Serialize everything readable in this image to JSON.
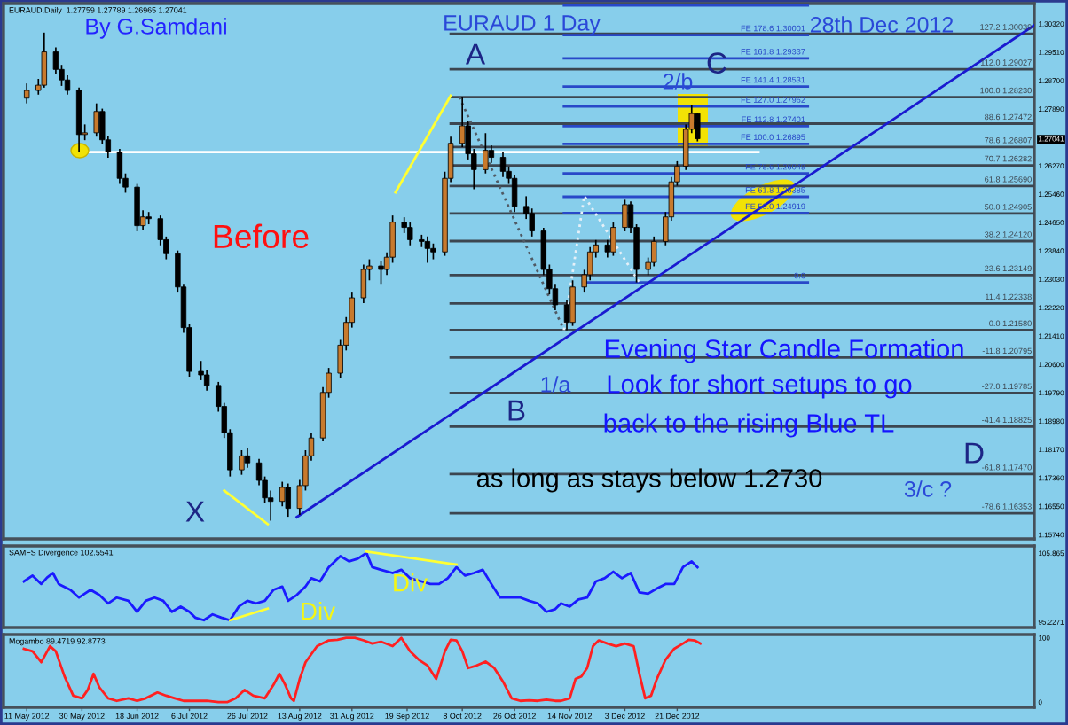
{
  "chart_data": [
    {
      "type": "candlestick",
      "title": "EURAUD 1 Day",
      "subtitle": "EURAUD,Daily  1.27759 1.27789 1.26965 1.27041",
      "x": [
        "2012-05-11",
        "2012-05-15",
        "2012-05-17",
        "2012-05-21",
        "2012-05-23",
        "2012-05-25",
        "2012-05-29",
        "2012-05-31",
        "2012-06-04",
        "2012-06-06",
        "2012-06-08",
        "2012-06-12",
        "2012-06-14",
        "2012-06-18",
        "2012-06-20",
        "2012-06-22",
        "2012-06-26",
        "2012-06-28",
        "2012-07-02",
        "2012-07-04",
        "2012-07-06",
        "2012-07-10",
        "2012-07-12",
        "2012-07-16",
        "2012-07-18",
        "2012-07-20",
        "2012-07-24",
        "2012-07-26",
        "2012-07-30",
        "2012-08-01",
        "2012-08-03",
        "2012-08-07",
        "2012-08-09",
        "2012-08-13",
        "2012-08-15",
        "2012-08-17",
        "2012-08-21",
        "2012-08-23",
        "2012-08-27",
        "2012-08-29",
        "2012-08-31",
        "2012-09-04",
        "2012-09-06",
        "2012-09-10",
        "2012-09-12",
        "2012-09-14",
        "2012-09-18",
        "2012-09-20",
        "2012-09-24",
        "2012-09-26",
        "2012-09-28",
        "2012-10-02",
        "2012-10-04",
        "2012-10-08",
        "2012-10-10",
        "2012-10-12",
        "2012-10-16",
        "2012-10-18",
        "2012-10-22",
        "2012-10-24",
        "2012-10-26",
        "2012-10-30",
        "2012-11-01",
        "2012-11-05",
        "2012-11-07",
        "2012-11-09",
        "2012-11-13",
        "2012-11-15",
        "2012-11-19",
        "2012-11-21",
        "2012-11-23",
        "2012-11-27",
        "2012-11-29",
        "2012-12-03",
        "2012-12-05",
        "2012-12-07",
        "2012-12-11",
        "2012-12-13",
        "2012-12-17",
        "2012-12-19",
        "2012-12-21",
        "2012-12-24",
        "2012-12-26",
        "2012-12-28"
      ],
      "ohlc": [
        [
          1.282,
          1.2862,
          1.2805,
          1.2842
        ],
        [
          1.2842,
          1.2875,
          1.283,
          1.2857
        ],
        [
          1.2857,
          1.3007,
          1.285,
          1.2952
        ],
        [
          1.2952,
          1.2965,
          1.289,
          1.2902
        ],
        [
          1.2902,
          1.2915,
          1.2855,
          1.2872
        ],
        [
          1.2872,
          1.2885,
          1.283,
          1.2842
        ],
        [
          1.2842,
          1.285,
          1.2666,
          1.2716
        ],
        [
          1.2716,
          1.2745,
          1.27,
          1.2721
        ],
        [
          1.2721,
          1.2805,
          1.271,
          1.2782
        ],
        [
          1.2782,
          1.279,
          1.269,
          1.2701
        ],
        [
          1.2701,
          1.2712,
          1.265,
          1.2666
        ],
        [
          1.2666,
          1.2675,
          1.2575,
          1.2591
        ],
        [
          1.2591,
          1.2605,
          1.255,
          1.2566
        ],
        [
          1.2566,
          1.2575,
          1.244,
          1.2456
        ],
        [
          1.2456,
          1.25,
          1.2445,
          1.2481
        ],
        [
          1.2481,
          1.2495,
          1.246,
          1.2476
        ],
        [
          1.2476,
          1.2485,
          1.24,
          1.2416
        ],
        [
          1.2416,
          1.2425,
          1.236,
          1.2376
        ],
        [
          1.2376,
          1.2385,
          1.2265,
          1.2281
        ],
        [
          1.2281,
          1.229,
          1.215,
          1.2165
        ],
        [
          1.2165,
          1.2175,
          1.2025,
          1.204
        ],
        [
          1.204,
          1.207,
          1.2015,
          1.203
        ],
        [
          1.203,
          1.2045,
          1.1985,
          1.2
        ],
        [
          1.2,
          1.201,
          1.1925,
          1.194
        ],
        [
          1.194,
          1.195,
          1.185,
          1.1865
        ],
        [
          1.1865,
          1.1875,
          1.174,
          1.1759
        ],
        [
          1.1759,
          1.1815,
          1.1745,
          1.1799
        ],
        [
          1.1799,
          1.182,
          1.1765,
          1.1779
        ],
        [
          1.1779,
          1.179,
          1.1715,
          1.1729
        ],
        [
          1.1729,
          1.174,
          1.1665,
          1.1679
        ],
        [
          1.1679,
          1.17,
          1.1614,
          1.1669
        ],
        [
          1.1669,
          1.1725,
          1.1655,
          1.1709
        ],
        [
          1.1709,
          1.172,
          1.1625,
          1.1649
        ],
        [
          1.1649,
          1.173,
          1.163,
          1.1714
        ],
        [
          1.1714,
          1.1815,
          1.17,
          1.1799
        ],
        [
          1.1799,
          1.1865,
          1.1785,
          1.185
        ],
        [
          1.185,
          1.1995,
          1.184,
          1.198
        ],
        [
          1.198,
          1.205,
          1.1965,
          1.2035
        ],
        [
          1.2035,
          1.213,
          1.202,
          1.2115
        ],
        [
          1.2115,
          1.2195,
          1.21,
          1.218
        ],
        [
          1.218,
          1.2265,
          1.2165,
          1.225
        ],
        [
          1.225,
          1.2345,
          1.2235,
          1.2331
        ],
        [
          1.2331,
          1.236,
          1.23,
          1.2341
        ],
        [
          1.2341,
          1.2355,
          1.229,
          1.2331
        ],
        [
          1.2331,
          1.238,
          1.2315,
          1.2366
        ],
        [
          1.2366,
          1.2485,
          1.235,
          1.2466
        ],
        [
          1.2466,
          1.248,
          1.2435,
          1.2451
        ],
        [
          1.2451,
          1.2465,
          1.24,
          1.2416
        ],
        [
          1.2416,
          1.243,
          1.2395,
          1.2411
        ],
        [
          1.2411,
          1.2425,
          1.235,
          1.2391
        ],
        [
          1.2391,
          1.2405,
          1.236,
          1.2381
        ],
        [
          1.2381,
          1.261,
          1.237,
          1.2591
        ],
        [
          1.2591,
          1.271,
          1.258,
          1.2691
        ],
        [
          1.2691,
          1.2823,
          1.268,
          1.2741
        ],
        [
          1.2741,
          1.2755,
          1.2645,
          1.2661
        ],
        [
          1.2661,
          1.2675,
          1.256,
          1.2616
        ],
        [
          1.2616,
          1.272,
          1.2605,
          1.2671
        ],
        [
          1.2671,
          1.2685,
          1.2635,
          1.2651
        ],
        [
          1.2651,
          1.2665,
          1.2595,
          1.2611
        ],
        [
          1.2611,
          1.2625,
          1.2575,
          1.2591
        ],
        [
          1.2591,
          1.26,
          1.2495,
          1.2511
        ],
        [
          1.2511,
          1.254,
          1.2475,
          1.2491
        ],
        [
          1.2491,
          1.2505,
          1.2425,
          1.2441
        ],
        [
          1.2441,
          1.245,
          1.2315,
          1.2331
        ],
        [
          1.2331,
          1.2345,
          1.226,
          1.2276
        ],
        [
          1.2276,
          1.229,
          1.2215,
          1.223
        ],
        [
          1.223,
          1.2245,
          1.2158,
          1.218
        ],
        [
          1.218,
          1.23,
          1.217,
          1.2281
        ],
        [
          1.2281,
          1.233,
          1.2265,
          1.2316
        ],
        [
          1.2316,
          1.2395,
          1.23,
          1.2381
        ],
        [
          1.2381,
          1.2415,
          1.2365,
          1.2401
        ],
        [
          1.2401,
          1.2415,
          1.2365,
          1.2381
        ],
        [
          1.2381,
          1.2465,
          1.237,
          1.2451
        ],
        [
          1.2451,
          1.253,
          1.244,
          1.2516
        ],
        [
          1.2516,
          1.2525,
          1.2435,
          1.2451
        ],
        [
          1.2451,
          1.246,
          1.2294,
          1.2331
        ],
        [
          1.2331,
          1.2365,
          1.2315,
          1.2351
        ],
        [
          1.2351,
          1.2425,
          1.234,
          1.2411
        ],
        [
          1.2411,
          1.2495,
          1.24,
          1.2481
        ],
        [
          1.2481,
          1.2595,
          1.247,
          1.2581
        ],
        [
          1.2581,
          1.264,
          1.257,
          1.2626
        ],
        [
          1.2626,
          1.2745,
          1.2615,
          1.2731
        ],
        [
          1.2731,
          1.28,
          1.272,
          1.2776
        ],
        [
          1.27759,
          1.27789,
          1.26965,
          1.27041
        ]
      ],
      "colors": [
        "#c87a2d",
        "#c87a2d",
        "#c87a2d",
        "#000000",
        "#000000",
        "#000000",
        "#000000",
        "#c87a2d",
        "#c87a2d",
        "#000000",
        "#000000",
        "#000000",
        "#000000",
        "#000000",
        "#c87a2d",
        "#000000",
        "#000000",
        "#000000",
        "#000000",
        "#000000",
        "#000000",
        "#000000",
        "#000000",
        "#000000",
        "#000000",
        "#000000",
        "#c87a2d",
        "#000000",
        "#000000",
        "#000000",
        "#000000",
        "#c87a2d",
        "#000000",
        "#c87a2d",
        "#c87a2d",
        "#c87a2d",
        "#c87a2d",
        "#c87a2d",
        "#c87a2d",
        "#c87a2d",
        "#c87a2d",
        "#c87a2d",
        "#c87a2d",
        "#000000",
        "#c87a2d",
        "#c87a2d",
        "#000000",
        "#000000",
        "#000000",
        "#000000",
        "#000000",
        "#c87a2d",
        "#c87a2d",
        "#c87a2d",
        "#000000",
        "#000000",
        "#c87a2d",
        "#000000",
        "#000000",
        "#000000",
        "#000000",
        "#000000",
        "#000000",
        "#000000",
        "#000000",
        "#000000",
        "#000000",
        "#c87a2d",
        "#c87a2d",
        "#c87a2d",
        "#c87a2d",
        "#000000",
        "#c87a2d",
        "#c87a2d",
        "#000000",
        "#000000",
        "#c87a2d",
        "#c87a2d",
        "#c87a2d",
        "#c87a2d",
        "#c87a2d",
        "#c87a2d",
        "#c87a2d",
        "#000000"
      ],
      "series": [
        {
          "type": "line",
          "name": "127.2 1.30039",
          "x": [
            "2012-10-04",
            "2013-04-23"
          ],
          "values": [
            1.30039,
            1.30039
          ],
          "color": "#3c4650"
        },
        {
          "type": "line",
          "name": "112.0 1.29027",
          "x": [
            "2012-10-04",
            "2013-04-23"
          ],
          "values": [
            1.29027,
            1.29027
          ],
          "color": "#3c4650"
        },
        {
          "type": "line",
          "name": "100.0 1.28230",
          "x": [
            "2012-10-04",
            "2013-04-23"
          ],
          "values": [
            1.2823,
            1.2823
          ],
          "color": "#3c4650"
        },
        {
          "type": "line",
          "name": "88.6 1.27472",
          "x": [
            "2012-10-04",
            "2013-04-23"
          ],
          "values": [
            1.27472,
            1.27472
          ],
          "color": "#3c4650"
        },
        {
          "type": "line",
          "name": "78.6 1.26807",
          "x": [
            "2012-10-04",
            "2013-04-23"
          ],
          "values": [
            1.26807,
            1.26807
          ],
          "color": "#3c4650"
        },
        {
          "type": "line",
          "name": "70.7 1.26282",
          "x": [
            "2012-10-04",
            "2013-04-23"
          ],
          "values": [
            1.26282,
            1.26282
          ],
          "color": "#3c4650"
        },
        {
          "type": "line",
          "name": "61.8 1.25690",
          "x": [
            "2012-10-04",
            "2013-04-23"
          ],
          "values": [
            1.2569,
            1.2569
          ],
          "color": "#3c4650"
        },
        {
          "type": "line",
          "name": "50.0 1.24905",
          "x": [
            "2012-10-04",
            "2013-04-23"
          ],
          "values": [
            1.24905,
            1.24905
          ],
          "color": "#3c4650"
        },
        {
          "type": "line",
          "name": "38.2 1.24120",
          "x": [
            "2012-10-04",
            "2013-04-23"
          ],
          "values": [
            1.2412,
            1.2412
          ],
          "color": "#3c4650"
        },
        {
          "type": "line",
          "name": "23.6 1.23149",
          "x": [
            "2012-10-04",
            "2013-04-23"
          ],
          "values": [
            1.23149,
            1.23149
          ],
          "color": "#3c4650"
        },
        {
          "type": "line",
          "name": "11.4 1.22338",
          "x": [
            "2012-10-04",
            "2013-04-23"
          ],
          "values": [
            1.22338,
            1.22338
          ],
          "color": "#3c4650"
        },
        {
          "type": "line",
          "name": "0.0 1.21580",
          "x": [
            "2012-10-04",
            "2013-04-23"
          ],
          "values": [
            1.2158,
            1.2158
          ],
          "color": "#3c4650"
        },
        {
          "type": "line",
          "name": "-11.8 1.20795",
          "x": [
            "2012-10-04",
            "2013-04-23"
          ],
          "values": [
            1.20795,
            1.20795
          ],
          "color": "#3c4650"
        },
        {
          "type": "line",
          "name": "-27.0 1.19785",
          "x": [
            "2012-10-04",
            "2013-04-23"
          ],
          "values": [
            1.19785,
            1.19785
          ],
          "color": "#3c4650"
        },
        {
          "type": "line",
          "name": "-41.4 1.18825",
          "x": [
            "2012-10-04",
            "2013-04-23"
          ],
          "values": [
            1.18825,
            1.18825
          ],
          "color": "#3c4650"
        },
        {
          "type": "line",
          "name": "-61.8 1.17470",
          "x": [
            "2012-10-04",
            "2013-04-23"
          ],
          "values": [
            1.1747,
            1.1747
          ],
          "color": "#3c4650"
        },
        {
          "type": "line",
          "name": "-78.6 1.16353",
          "x": [
            "2012-10-04",
            "2013-04-23"
          ],
          "values": [
            1.16353,
            1.16353
          ],
          "color": "#3c4650"
        },
        {
          "type": "line",
          "name": "FE 178.6 1.30001",
          "x": [
            "2012-11-12",
            "2013-02-04"
          ],
          "values": [
            1.30001,
            1.30001
          ],
          "color": "#2848c8"
        },
        {
          "type": "line",
          "name": "FE 161.8 1.29337",
          "x": [
            "2012-11-12",
            "2013-02-04"
          ],
          "values": [
            1.29337,
            1.29337
          ],
          "color": "#2848c8"
        },
        {
          "type": "line",
          "name": "FE 141.4 1.28531",
          "x": [
            "2012-11-12",
            "2013-02-04"
          ],
          "values": [
            1.28531,
            1.28531
          ],
          "color": "#2848c8"
        },
        {
          "type": "line",
          "name": "FE 127.0 1.27962",
          "x": [
            "2012-11-12",
            "2013-02-04"
          ],
          "values": [
            1.27962,
            1.27962
          ],
          "color": "#2848c8"
        },
        {
          "type": "line",
          "name": "FE 112.8 1.27401",
          "x": [
            "2012-11-12",
            "2013-02-04"
          ],
          "values": [
            1.27401,
            1.27401
          ],
          "color": "#2848c8"
        },
        {
          "type": "line",
          "name": "FE 100.0 1.26895",
          "x": [
            "2012-11-12",
            "2013-02-04"
          ],
          "values": [
            1.26895,
            1.26895
          ],
          "color": "#2848c8"
        },
        {
          "type": "line",
          "name": "FE 78.6 1.26049",
          "x": [
            "2012-11-12",
            "2013-02-04"
          ],
          "values": [
            1.26049,
            1.26049
          ],
          "color": "#2848c8"
        },
        {
          "type": "line",
          "name": "FE 61.8 1.25385",
          "x": [
            "2012-11-12",
            "2013-02-04"
          ],
          "values": [
            1.25385,
            1.25385
          ],
          "color": "#2848c8"
        },
        {
          "type": "line",
          "name": "FE 50.0 1.24919",
          "x": [
            "2012-11-12",
            "2013-02-04"
          ],
          "values": [
            1.24919,
            1.24919
          ],
          "color": "#2848c8"
        },
        {
          "type": "line",
          "name": "0.0",
          "x": [
            "2012-11-19",
            "2013-02-04"
          ],
          "values": [
            1.22943,
            1.22943
          ],
          "color": "#2848c8"
        },
        {
          "type": "line",
          "x": [
            "2012-11-12",
            "2013-02-04"
          ],
          "values": [
            1.30847,
            1.30847
          ],
          "color": "#2848c8"
        },
        {
          "type": "line",
          "x": [
            "2012-08-12",
            "2013-04-23"
          ],
          "values": [
            1.1624,
            1.3028
          ],
          "color": "#1a1ad0"
        },
        {
          "type": "line",
          "x": [
            "2012-05-30",
            "2013-01-18"
          ],
          "values": [
            1.2666,
            1.2666
          ],
          "color": "#ffffff"
        },
        {
          "type": "line",
          "x": [
            "2012-07-18",
            "2012-08-02"
          ],
          "values": [
            1.17,
            1.1604
          ],
          "color": "#ffff33"
        },
        {
          "type": "line",
          "x": [
            "2012-09-15",
            "2012-10-04"
          ],
          "values": [
            1.2551,
            1.2827
          ],
          "color": "#ffff33"
        },
        {
          "type": "line",
          "line_style": "dotted",
          "x": [
            "2012-10-07",
            "2012-11-12"
          ],
          "values": [
            1.2823,
            1.2158
          ],
          "color": "#505a64"
        },
        {
          "type": "line",
          "line_style": "dotted",
          "x": [
            "2012-11-12",
            "2012-11-19",
            "2012-12-08"
          ],
          "values": [
            1.2158,
            1.2541,
            1.2294
          ],
          "color": "#e6f0f8"
        }
      ],
      "xlim": [
        "2012-05-03",
        "2013-04-23"
      ],
      "ylim": [
        1.1562,
        1.309
      ],
      "yticks": [
        {
          "value": 1.3032,
          "label": "1.30320"
        },
        {
          "value": 1.2951,
          "label": "1.29510"
        },
        {
          "value": 1.287,
          "label": "1.28700"
        },
        {
          "value": 1.2789,
          "label": "1.27890"
        },
        {
          "value": 1.27041,
          "label": "1.27041"
        },
        {
          "value": 1.2627,
          "label": "1.26270"
        },
        {
          "value": 1.2546,
          "label": "1.25460"
        },
        {
          "value": 1.2465,
          "label": "1.24650"
        },
        {
          "value": 1.2384,
          "label": "1.23840"
        },
        {
          "value": 1.2303,
          "label": "1.23030"
        },
        {
          "value": 1.2222,
          "label": "1.22220"
        },
        {
          "value": 1.2141,
          "label": "1.21410"
        },
        {
          "value": 1.206,
          "label": "1.20600"
        },
        {
          "value": 1.1979,
          "label": "1.19790"
        },
        {
          "value": 1.1898,
          "label": "1.18980"
        },
        {
          "value": 1.1817,
          "label": "1.18170"
        },
        {
          "value": 1.1736,
          "label": "1.17360"
        },
        {
          "value": 1.1655,
          "label": "1.16550"
        },
        {
          "value": 1.1574,
          "label": "1.15740"
        }
      ],
      "tick_labels": "y",
      "annotations": [
        "By G.Samdani",
        "28th Dec 2012",
        "Before",
        "Evening Star Candle Formation",
        "Look for short setups to go",
        "back to the rising Blue TL",
        "as long as stays below 1.2730",
        "A",
        "B",
        "C",
        "D",
        "X",
        "2/b",
        "1/a",
        "3/c ?"
      ]
    },
    {
      "type": "line",
      "title": "SAMFS Divergence 102.5541",
      "series": [
        {
          "x": [
            "2012-05-10",
            "2012-05-13",
            "2012-05-16",
            "2012-05-18",
            "2012-05-20",
            "2012-05-22",
            "2012-05-26",
            "2012-05-29",
            "2012-06-02",
            "2012-06-05",
            "2012-06-08",
            "2012-06-11",
            "2012-06-15",
            "2012-06-18",
            "2012-06-21",
            "2012-06-24",
            "2012-06-27",
            "2012-06-30",
            "2012-07-03",
            "2012-07-06",
            "2012-07-08",
            "2012-07-11",
            "2012-07-14",
            "2012-07-17",
            "2012-07-20",
            "2012-07-23",
            "2012-07-26",
            "2012-07-29",
            "2012-08-01",
            "2012-08-04",
            "2012-08-07",
            "2012-08-09",
            "2012-08-12",
            "2012-08-15",
            "2012-08-17",
            "2012-08-20",
            "2012-08-23",
            "2012-08-27",
            "2012-08-30",
            "2012-09-02",
            "2012-09-05",
            "2012-09-07",
            "2012-09-10",
            "2012-09-14",
            "2012-09-17",
            "2012-09-20",
            "2012-09-24",
            "2012-09-27",
            "2012-09-30",
            "2012-10-03",
            "2012-10-06",
            "2012-10-09",
            "2012-10-12",
            "2012-10-15",
            "2012-10-18",
            "2012-10-21",
            "2012-10-24",
            "2012-10-28",
            "2012-10-31",
            "2012-11-03",
            "2012-11-06",
            "2012-11-09",
            "2012-11-11",
            "2012-11-14",
            "2012-11-17",
            "2012-11-20",
            "2012-11-23",
            "2012-11-26",
            "2012-11-29",
            "2012-12-02",
            "2012-12-05",
            "2012-12-08",
            "2012-12-11",
            "2012-12-14",
            "2012-12-17",
            "2012-12-20",
            "2012-12-23",
            "2012-12-26",
            "2012-12-28"
          ],
          "values": [
            101.5,
            102.4,
            101.1,
            102.1,
            102.8,
            101.1,
            100.2,
            99.0,
            100.2,
            99.4,
            98.1,
            99.0,
            98.5,
            96.8,
            98.5,
            99.0,
            98.5,
            96.8,
            97.6,
            96.8,
            95.9,
            95.5,
            96.4,
            95.9,
            95.5,
            97.6,
            98.5,
            98.1,
            98.5,
            100.2,
            100.7,
            98.5,
            99.4,
            100.7,
            102.0,
            101.5,
            103.7,
            105.4,
            104.6,
            105.0,
            105.9,
            103.7,
            103.3,
            102.8,
            103.3,
            102.0,
            101.5,
            101.1,
            101.1,
            102.0,
            103.7,
            102.4,
            102.8,
            103.3,
            101.1,
            99.0,
            99.0,
            99.0,
            98.5,
            98.1,
            96.8,
            97.2,
            98.1,
            97.6,
            98.7,
            99.0,
            101.5,
            102.0,
            103.0,
            102.0,
            102.8,
            99.8,
            99.6,
            100.4,
            101.1,
            101.1,
            103.7,
            104.6,
            103.7
          ],
          "color": "#1a1aff"
        },
        {
          "x": [
            "2012-07-20",
            "2012-08-02"
          ],
          "values": [
            95.5,
            97.3
          ],
          "color": "#ffff33"
        },
        {
          "x": [
            "2012-09-05",
            "2012-10-06"
          ],
          "values": [
            106.1,
            104.1
          ],
          "color": "#ffff33"
        }
      ],
      "xlim": [
        "2012-05-03",
        "2013-04-23"
      ],
      "ylim": [
        94.37,
        106.98
      ],
      "yticks": [
        105.865,
        95.2271
      ],
      "tick_labels": "y",
      "annotations": [
        "Div",
        "Div"
      ]
    },
    {
      "type": "line",
      "title": "Mogambo 89.4719 92.8773",
      "series": [
        {
          "x": [
            "2012-05-10",
            "2012-05-13",
            "2012-05-16",
            "2012-05-19",
            "2012-05-21",
            "2012-05-24",
            "2012-05-27",
            "2012-05-30",
            "2012-06-01",
            "2012-06-03",
            "2012-06-05",
            "2012-06-08",
            "2012-06-11",
            "2012-06-15",
            "2012-06-18",
            "2012-06-21",
            "2012-06-25",
            "2012-06-28",
            "2012-07-01",
            "2012-07-04",
            "2012-07-08",
            "2012-07-12",
            "2012-07-16",
            "2012-07-19",
            "2012-07-22",
            "2012-07-25",
            "2012-07-28",
            "2012-08-01",
            "2012-08-04",
            "2012-08-06",
            "2012-08-08",
            "2012-08-10",
            "2012-08-11",
            "2012-08-13",
            "2012-08-15",
            "2012-08-19",
            "2012-08-23",
            "2012-08-26",
            "2012-08-29",
            "2012-09-01",
            "2012-09-04",
            "2012-09-07",
            "2012-09-10",
            "2012-09-14",
            "2012-09-17",
            "2012-09-20",
            "2012-09-23",
            "2012-09-26",
            "2012-09-29",
            "2012-10-02",
            "2012-10-04",
            "2012-10-06",
            "2012-10-08",
            "2012-10-10",
            "2012-10-13",
            "2012-10-16",
            "2012-10-19",
            "2012-10-22",
            "2012-10-25",
            "2012-10-28",
            "2012-10-31",
            "2012-11-03",
            "2012-11-06",
            "2012-11-09",
            "2012-11-11",
            "2012-11-14",
            "2012-11-16",
            "2012-11-18",
            "2012-11-20",
            "2012-11-22",
            "2012-11-24",
            "2012-11-27",
            "2012-11-30",
            "2012-12-03",
            "2012-12-06",
            "2012-12-08",
            "2012-12-10",
            "2012-12-12",
            "2012-12-14",
            "2012-12-17",
            "2012-12-20",
            "2012-12-23",
            "2012-12-25",
            "2012-12-27",
            "2012-12-29"
          ],
          "values": [
            83,
            79,
            62,
            87,
            79,
            40,
            10,
            6,
            19,
            44,
            23,
            6,
            2,
            6,
            2,
            6,
            15,
            10,
            6,
            2,
            2,
            2,
            0,
            0,
            6,
            19,
            10,
            6,
            27,
            44,
            27,
            6,
            2,
            36,
            62,
            87,
            96,
            97,
            100,
            100,
            96,
            91,
            94,
            87,
            100,
            79,
            66,
            57,
            36,
            79,
            97,
            96,
            79,
            53,
            57,
            63,
            53,
            32,
            6,
            2,
            3,
            2,
            4,
            2,
            2,
            6,
            36,
            40,
            53,
            87,
            96,
            91,
            87,
            91,
            87,
            44,
            6,
            10,
            36,
            66,
            83,
            91,
            97,
            96,
            91
          ],
          "color": "#ff2020"
        }
      ],
      "xlim": [
        "2012-05-03",
        "2013-04-23"
      ],
      "ylim": [
        -8,
        105
      ],
      "yticks": [
        100,
        0
      ],
      "xticks": [
        {
          "value": "2012-05-11",
          "label": "11 May 2012"
        },
        {
          "value": "2012-05-30",
          "label": "30 May 2012"
        },
        {
          "value": "2012-06-18",
          "label": "18 Jun 2012"
        },
        {
          "value": "2012-07-06",
          "label": "6 Jul 2012"
        },
        {
          "value": "2012-07-26",
          "label": "26 Jul 2012"
        },
        {
          "value": "2012-08-13",
          "label": "13 Aug 2012"
        },
        {
          "value": "2012-08-31",
          "label": "31 Aug 2012"
        },
        {
          "value": "2012-09-19",
          "label": "19 Sep 2012"
        },
        {
          "value": "2012-10-08",
          "label": "8 Oct 2012"
        },
        {
          "value": "2012-10-26",
          "label": "26 Oct 2012"
        },
        {
          "value": "2012-11-14",
          "label": "14 Nov 2012"
        },
        {
          "value": "2012-12-03",
          "label": "3 Dec 2012"
        },
        {
          "value": "2012-12-21",
          "label": "21 Dec 2012"
        }
      ]
    }
  ]
}
